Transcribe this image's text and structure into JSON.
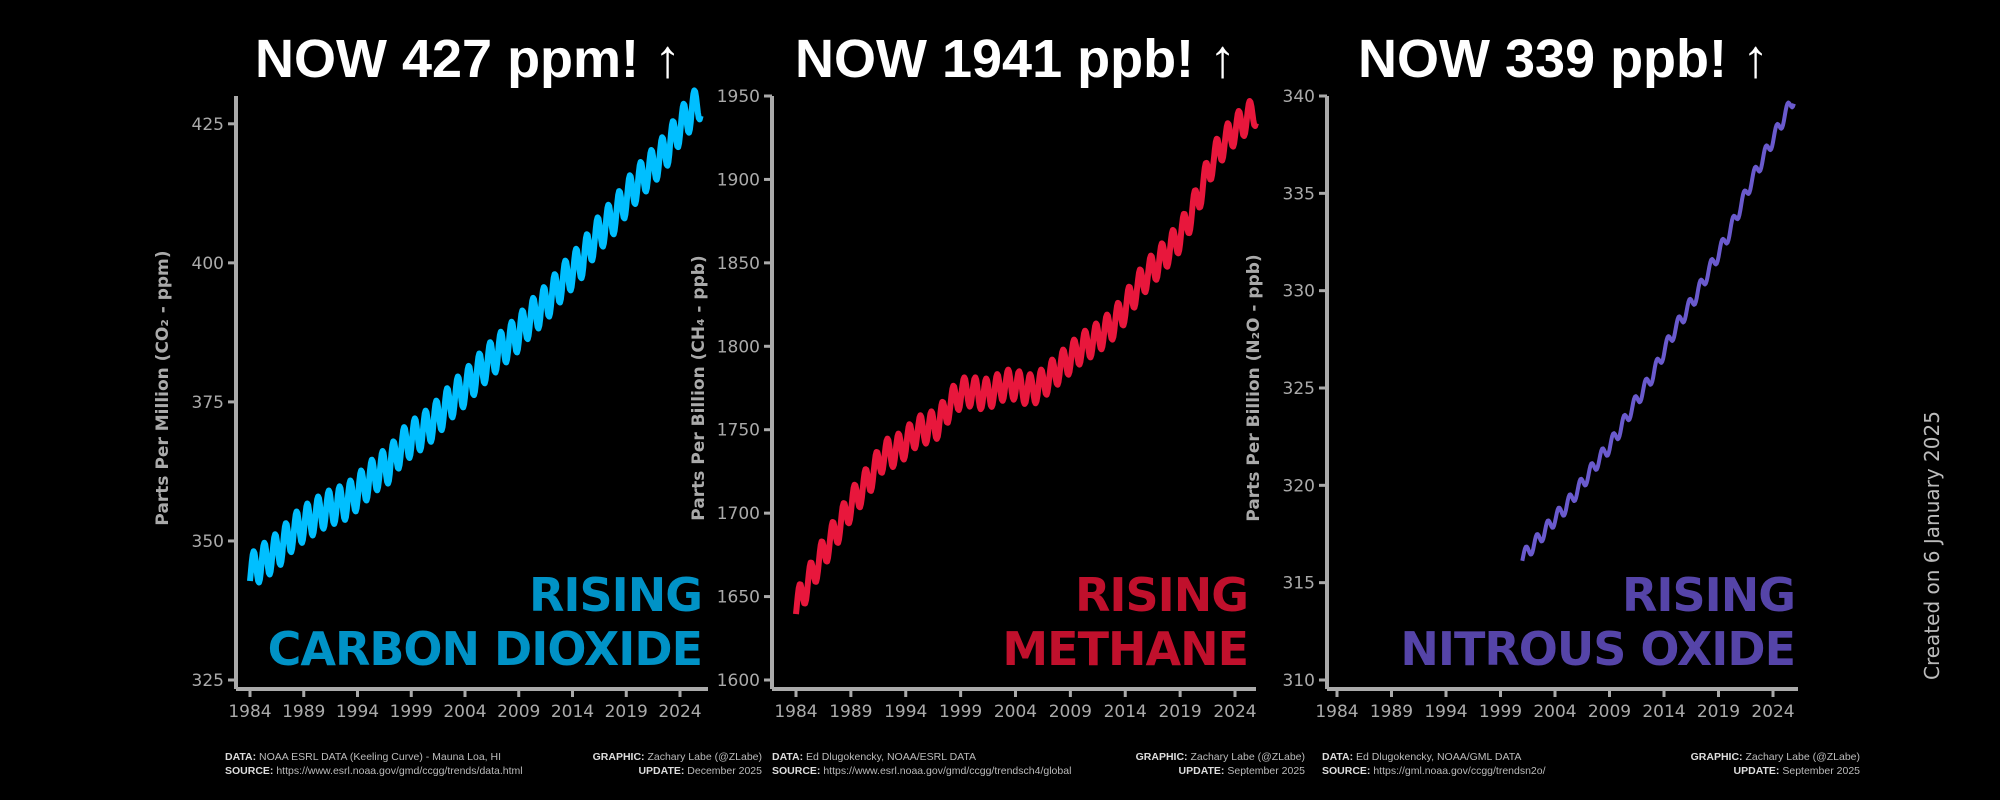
{
  "created": "Created on 6 January 2025",
  "colors": {
    "axis": "#aaaaaa",
    "background": "#000000"
  },
  "chart_data": [
    {
      "type": "line",
      "headline": "NOW 427 ppm! ↑",
      "rising": [
        "RISING",
        "CARBON DIOXIDE"
      ],
      "line_color": "#00bfff",
      "label_color": "#0092c6",
      "ylabel": "Parts Per Million (CO₂ - ppm)",
      "ylim": [
        325,
        430
      ],
      "yticks": [
        325,
        350,
        375,
        400,
        425
      ],
      "xticks": [
        1984,
        1989,
        1994,
        1999,
        2004,
        2009,
        2014,
        2019,
        2024
      ],
      "xlim": [
        1984,
        2026
      ],
      "seasonal_amplitude": 3.2,
      "x": [
        1984,
        1985,
        1986,
        1987,
        1988,
        1989,
        1990,
        1991,
        1992,
        1993,
        1994,
        1995,
        1996,
        1997,
        1998,
        1999,
        2000,
        2001,
        2002,
        2003,
        2004,
        2005,
        2006,
        2007,
        2008,
        2009,
        2010,
        2011,
        2012,
        2013,
        2014,
        2015,
        2016,
        2017,
        2018,
        2019,
        2020,
        2021,
        2022,
        2023,
        2024,
        2025
      ],
      "y": [
        344.4,
        346.0,
        347.4,
        349.2,
        351.6,
        353.1,
        354.4,
        355.6,
        356.4,
        357.1,
        358.8,
        360.8,
        362.6,
        363.7,
        366.7,
        368.4,
        369.7,
        371.3,
        373.5,
        375.8,
        377.5,
        379.8,
        381.9,
        383.8,
        385.6,
        387.4,
        389.9,
        391.7,
        393.9,
        396.5,
        398.6,
        400.8,
        404.2,
        406.5,
        408.7,
        411.7,
        414.2,
        416.4,
        418.5,
        421.1,
        424.6,
        427.0
      ],
      "credits": {
        "data": "NOAA ESRL DATA (Keeling Curve) - Mauna Loa, HI",
        "source": "https://www.esrl.noaa.gov/gmd/ccgg/trends/data.html",
        "graphic": "Zachary Labe (@ZLabe)",
        "update": "December 2025"
      }
    },
    {
      "type": "line",
      "headline": "NOW 1941 ppb! ↑",
      "rising": [
        "RISING",
        "METHANE"
      ],
      "line_color": "#e8173c",
      "label_color": "#c0102c",
      "ylabel": "Parts Per Billion (CH₄ - ppb)",
      "ylim": [
        1600,
        1950
      ],
      "yticks": [
        1600,
        1650,
        1700,
        1750,
        1800,
        1850,
        1900,
        1950
      ],
      "xticks": [
        1984,
        1989,
        1994,
        1999,
        2004,
        2009,
        2014,
        2019,
        2024
      ],
      "xlim": [
        1984,
        2026
      ],
      "seasonal_amplitude": 9,
      "x": [
        1984,
        1985,
        1986,
        1987,
        1988,
        1989,
        1990,
        1991,
        1992,
        1993,
        1994,
        1995,
        1996,
        1997,
        1998,
        1999,
        2000,
        2001,
        2002,
        2003,
        2004,
        2005,
        2006,
        2007,
        2008,
        2009,
        2010,
        2011,
        2012,
        2013,
        2014,
        2015,
        2016,
        2017,
        2018,
        2019,
        2020,
        2021,
        2022,
        2023,
        2024,
        2025
      ],
      "y": [
        1644,
        1657,
        1670,
        1682,
        1693,
        1705,
        1714,
        1724,
        1735,
        1737,
        1742,
        1749,
        1751,
        1754,
        1765,
        1772,
        1773,
        1771,
        1773,
        1777,
        1777,
        1774,
        1775,
        1781,
        1787,
        1793,
        1799,
        1803,
        1808,
        1814,
        1823,
        1834,
        1843,
        1850,
        1858,
        1866,
        1879,
        1895,
        1912,
        1922,
        1930,
        1936
      ],
      "credits": {
        "data": "Ed Dlugokencky, NOAA/ESRL DATA",
        "source": "https://www.esrl.noaa.gov/gmd/ccgg/trendsch4/global",
        "graphic": "Zachary Labe (@ZLabe)",
        "update": "September 2025"
      }
    },
    {
      "type": "line",
      "headline": "NOW 339 ppb! ↑",
      "rising": [
        "RISING",
        "NITROUS OXIDE"
      ],
      "line_color": "#6a5acd",
      "label_color": "#5544a8",
      "ylabel": "Parts Per Billion (N₂O - ppb)",
      "ylim": [
        310,
        340
      ],
      "yticks": [
        310,
        315,
        320,
        325,
        330,
        335,
        340
      ],
      "xticks": [
        1984,
        1989,
        1994,
        1999,
        2004,
        2009,
        2014,
        2019,
        2024
      ],
      "xlim": [
        1984,
        2026
      ],
      "seasonal_amplitude": 0.35,
      "x": [
        2001,
        2002,
        2003,
        2004,
        2005,
        2006,
        2007,
        2008,
        2009,
        2010,
        2011,
        2012,
        2013,
        2014,
        2015,
        2016,
        2017,
        2018,
        2019,
        2020,
        2021,
        2022,
        2023,
        2024,
        2025
      ],
      "y": [
        316.3,
        316.9,
        317.6,
        318.3,
        318.9,
        319.7,
        320.5,
        321.3,
        322.0,
        322.9,
        323.9,
        324.8,
        325.7,
        326.9,
        328.0,
        328.9,
        329.8,
        330.9,
        331.9,
        333.0,
        334.3,
        335.6,
        336.7,
        337.8,
        338.9
      ],
      "credits": {
        "data": "Ed Dlugokencky, NOAA/GML DATA",
        "source": "https://gml.noaa.gov/ccgg/trendsn2o/",
        "graphic": "Zachary Labe (@ZLabe)",
        "update": "September 2025"
      }
    }
  ]
}
